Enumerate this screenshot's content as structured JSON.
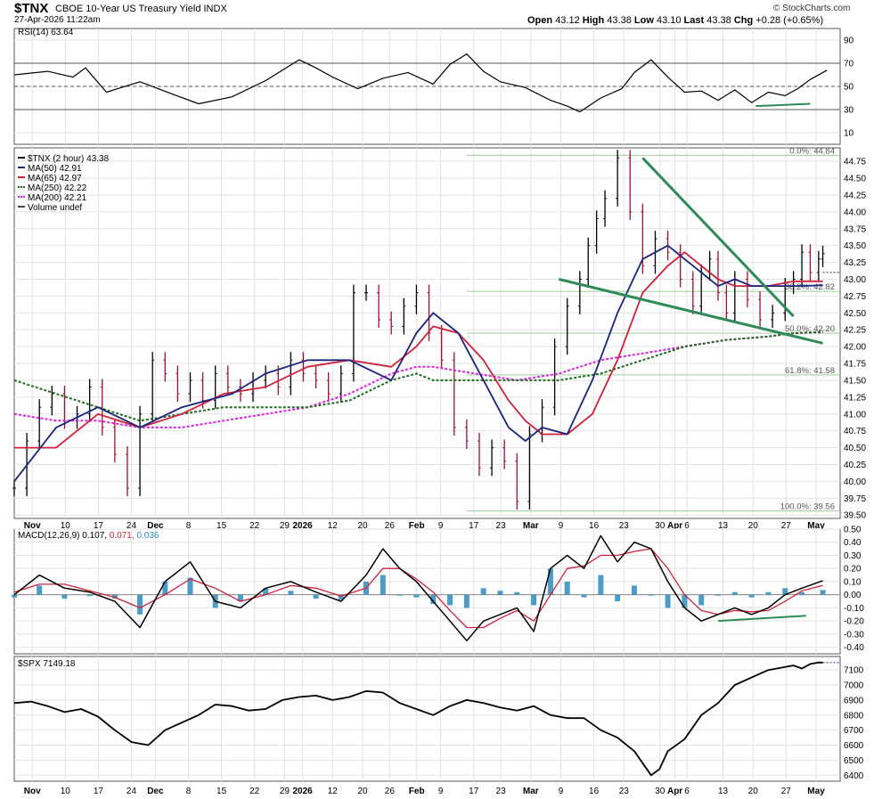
{
  "header": {
    "symbol": "$TNX",
    "name": "CBOE 10-Year US Treasury Yield INDX",
    "date": "27-Apr-2026 11:22am",
    "credit": "© StockCharts.com",
    "open_label": "Open",
    "open": "43.12",
    "high_label": "High",
    "high": "43.38",
    "low_label": "Low",
    "low": "43.10",
    "last_label": "Last",
    "last": "43.38",
    "chg_label": "Chg",
    "chg": "+0.28 (+0.65%)"
  },
  "colors": {
    "ma50": "#1a237e",
    "ma65": "#d0203a",
    "ma250": "#1e6b1e",
    "ma200": "#e020e0",
    "macd_hist": "#2b8cbe",
    "trend": "#2e8b57",
    "grid": "#e2e2e2",
    "fib": "#9ccc9c"
  },
  "chart_data": [
    {
      "type": "line",
      "panel": "rsi",
      "title": "RSI(14) 63.64",
      "ylim": [
        0,
        100
      ],
      "yticks": [
        "90",
        "70",
        "50",
        "30",
        "10"
      ],
      "reference_lines": [
        70,
        50,
        30
      ],
      "x": [
        0,
        8,
        14,
        17,
        22,
        30,
        38,
        44,
        52,
        60,
        68,
        72,
        76,
        82,
        88,
        94,
        100,
        104,
        108,
        112,
        116,
        122,
        128,
        132,
        135,
        140,
        145,
        148,
        152,
        156,
        160,
        164,
        168,
        172,
        176,
        180,
        184,
        187,
        190,
        194
      ],
      "values": [
        60,
        63,
        58,
        66,
        45,
        54,
        43,
        35,
        41,
        55,
        73,
        66,
        58,
        48,
        57,
        62,
        52,
        69,
        78,
        63,
        54,
        49,
        38,
        33,
        28,
        40,
        48,
        62,
        73,
        58,
        45,
        46,
        38,
        47,
        36,
        45,
        42,
        48,
        56,
        64
      ]
    },
    {
      "type": "line",
      "panel": "price",
      "series": [
        {
          "name": "$TNX (2 hour) 43.38",
          "kind": "ohlc",
          "x": [
            0,
            3,
            6,
            9,
            12,
            15,
            18,
            21,
            24,
            27,
            30,
            33,
            36,
            39,
            42,
            45,
            48,
            51,
            54,
            57,
            60,
            63,
            66,
            69,
            72,
            75,
            78,
            81,
            84,
            87,
            90,
            93,
            96,
            99,
            102,
            105,
            108,
            111,
            114,
            117,
            120,
            123,
            126,
            129,
            132,
            135,
            137,
            139,
            141,
            144,
            147,
            150,
            153,
            156,
            159,
            162,
            164,
            166,
            168,
            170,
            172,
            175,
            178,
            181,
            184,
            186,
            188,
            190,
            192,
            193
          ],
          "values": [
            39.9,
            40.6,
            41.1,
            41.3,
            40.9,
            41.0,
            41.4,
            40.8,
            40.4,
            39.9,
            41.0,
            41.8,
            41.6,
            41.3,
            41.5,
            41.2,
            41.6,
            41.4,
            41.3,
            41.5,
            41.6,
            41.4,
            41.8,
            41.6,
            41.5,
            41.3,
            41.6,
            42.8,
            42.8,
            42.4,
            42.3,
            42.6,
            42.8,
            42.2,
            41.8,
            40.8,
            40.6,
            40.2,
            40.5,
            40.3,
            39.7,
            40.7,
            41.1,
            42.0,
            42.6,
            43.0,
            43.5,
            43.9,
            44.2,
            44.8,
            44.0,
            43.2,
            43.6,
            43.4,
            43.0,
            42.6,
            43.1,
            43.3,
            42.8,
            42.5,
            43.0,
            42.7,
            42.4,
            42.5,
            42.9,
            43.0,
            43.4,
            43.1,
            43.3,
            43.38
          ]
        },
        {
          "name": "MA(50) 42.91",
          "x": [
            0,
            10,
            20,
            30,
            40,
            46,
            52,
            60,
            70,
            80,
            90,
            96,
            100,
            106,
            112,
            118,
            122,
            126,
            132,
            138,
            144,
            150,
            156,
            160,
            164,
            168,
            172,
            176,
            180,
            186,
            193
          ],
          "values": [
            40.0,
            40.8,
            41.1,
            40.8,
            41.1,
            41.2,
            41.3,
            41.6,
            41.8,
            41.8,
            41.5,
            42.2,
            42.5,
            42.2,
            41.5,
            40.8,
            40.6,
            40.8,
            40.7,
            41.5,
            42.5,
            43.3,
            43.5,
            43.3,
            43.1,
            42.9,
            43.0,
            42.9,
            42.9,
            42.9,
            42.91
          ]
        },
        {
          "name": "MA(65) 42.97",
          "x": [
            0,
            10,
            20,
            30,
            40,
            50,
            60,
            70,
            80,
            90,
            96,
            100,
            106,
            112,
            118,
            122,
            126,
            132,
            138,
            144,
            150,
            156,
            160,
            164,
            168,
            172,
            176,
            180,
            186,
            193
          ],
          "values": [
            40.5,
            40.5,
            41.0,
            40.8,
            41.0,
            41.3,
            41.4,
            41.7,
            41.8,
            41.7,
            42.0,
            42.3,
            42.2,
            41.8,
            41.2,
            40.9,
            40.7,
            40.7,
            41.0,
            41.8,
            42.8,
            43.2,
            43.4,
            43.2,
            43.0,
            42.9,
            42.9,
            42.9,
            42.97,
            42.97
          ]
        },
        {
          "name": "MA(250) 42.22",
          "x": [
            0,
            10,
            20,
            30,
            40,
            50,
            60,
            70,
            80,
            90,
            96,
            100,
            110,
            120,
            130,
            140,
            150,
            160,
            170,
            180,
            186,
            193
          ],
          "values": [
            41.5,
            41.3,
            41.1,
            40.9,
            41.0,
            41.1,
            41.1,
            41.1,
            41.2,
            41.5,
            41.6,
            41.5,
            41.5,
            41.5,
            41.5,
            41.6,
            41.8,
            42.0,
            42.1,
            42.15,
            42.2,
            42.22
          ]
        },
        {
          "name": "MA(200) 42.21",
          "x": [
            0,
            10,
            20,
            30,
            40,
            50,
            60,
            70,
            80,
            90,
            96,
            100,
            110,
            120,
            130,
            140,
            150,
            160,
            170,
            180,
            186,
            193
          ],
          "values": [
            41.0,
            40.9,
            40.9,
            40.8,
            40.8,
            40.9,
            41.0,
            41.1,
            41.3,
            41.6,
            41.7,
            41.7,
            41.6,
            41.5,
            41.6,
            41.8,
            41.9,
            42.0,
            42.1,
            42.15,
            42.2,
            42.21
          ]
        }
      ],
      "volume_label": "Volume undef",
      "ylim": [
        39.45,
        44.95
      ],
      "yticks": [
        "44.75",
        "44.50",
        "44.25",
        "44.00",
        "43.75",
        "43.50",
        "43.25",
        "43.00",
        "42.75",
        "42.50",
        "42.25",
        "42.00",
        "41.75",
        "41.50",
        "41.25",
        "41.00",
        "40.75",
        "40.50",
        "40.25",
        "40.00",
        "39.75",
        "39.50"
      ],
      "fib_levels": [
        {
          "label": "0.0%: 44.84",
          "value": 44.84
        },
        {
          "label": "38.2%: 42.82",
          "value": 42.82
        },
        {
          "label": "50.0%: 42.20",
          "value": 42.2
        },
        {
          "label": "61.8%: 41.58",
          "value": 41.58
        },
        {
          "label": "100.0%: 39.56",
          "value": 39.56
        }
      ],
      "trendlines": [
        {
          "x": [
            150,
            186
          ],
          "values": [
            44.8,
            42.45
          ]
        },
        {
          "x": [
            130,
            193
          ],
          "values": [
            43.0,
            42.05
          ]
        }
      ]
    },
    {
      "type": "line",
      "panel": "macd",
      "title": "MACD(12,26,9)",
      "macd": "0.107",
      "signal": "0.071",
      "histogram": "0.036",
      "ylim": [
        -0.45,
        0.5
      ],
      "yticks": [
        "0.50",
        "0.40",
        "0.30",
        "0.20",
        "0.10",
        "0.00",
        "-0.10",
        "-0.20",
        "-0.30",
        "-0.40"
      ],
      "x": [
        0,
        6,
        12,
        18,
        24,
        30,
        36,
        42,
        48,
        54,
        60,
        66,
        72,
        78,
        84,
        88,
        92,
        96,
        100,
        104,
        108,
        112,
        116,
        120,
        124,
        128,
        132,
        136,
        140,
        144,
        148,
        152,
        156,
        160,
        164,
        168,
        172,
        176,
        180,
        184,
        188,
        193
      ],
      "macd_values": [
        0.0,
        0.15,
        0.05,
        0.02,
        -0.05,
        -0.25,
        0.1,
        0.25,
        -0.05,
        -0.1,
        0.05,
        0.1,
        0.02,
        -0.05,
        0.15,
        0.35,
        0.2,
        0.1,
        -0.05,
        -0.2,
        -0.35,
        -0.2,
        -0.15,
        -0.1,
        -0.28,
        0.2,
        0.3,
        0.2,
        0.45,
        0.25,
        0.4,
        0.35,
        0.1,
        -0.1,
        -0.2,
        -0.15,
        -0.1,
        -0.15,
        -0.1,
        0.0,
        0.05,
        0.107
      ],
      "signal_values": [
        0.02,
        0.08,
        0.08,
        0.03,
        -0.02,
        -0.1,
        0.0,
        0.12,
        0.05,
        -0.05,
        0.0,
        0.07,
        0.05,
        -0.01,
        0.05,
        0.2,
        0.2,
        0.12,
        0.02,
        -0.12,
        -0.25,
        -0.25,
        -0.18,
        -0.12,
        -0.2,
        0.0,
        0.2,
        0.22,
        0.3,
        0.3,
        0.33,
        0.35,
        0.2,
        0.0,
        -0.12,
        -0.15,
        -0.12,
        -0.13,
        -0.12,
        -0.05,
        0.03,
        0.071
      ],
      "trendline": {
        "x": [
          168,
          189
        ],
        "values": [
          -0.2,
          -0.16
        ]
      }
    },
    {
      "type": "line",
      "panel": "spx",
      "title": "$SPX 7149.18",
      "ylim": [
        6360,
        7190
      ],
      "yticks": [
        "7100",
        "7000",
        "6900",
        "6800",
        "6700",
        "6600",
        "6500",
        "6400"
      ],
      "x": [
        0,
        4,
        8,
        12,
        16,
        20,
        24,
        28,
        32,
        36,
        40,
        44,
        48,
        52,
        56,
        60,
        64,
        68,
        72,
        76,
        80,
        84,
        88,
        92,
        96,
        100,
        104,
        108,
        112,
        116,
        120,
        124,
        128,
        132,
        136,
        140,
        144,
        148,
        150,
        152,
        154,
        156,
        160,
        164,
        168,
        172,
        176,
        180,
        184,
        186,
        188,
        190,
        192,
        193
      ],
      "values": [
        6880,
        6890,
        6860,
        6820,
        6840,
        6790,
        6700,
        6620,
        6600,
        6700,
        6750,
        6800,
        6870,
        6860,
        6830,
        6840,
        6900,
        6920,
        6930,
        6900,
        6920,
        6960,
        6950,
        6880,
        6840,
        6800,
        6860,
        6900,
        6880,
        6850,
        6830,
        6860,
        6800,
        6780,
        6780,
        6700,
        6650,
        6560,
        6480,
        6400,
        6440,
        6560,
        6640,
        6800,
        6880,
        7000,
        7050,
        7100,
        7120,
        7130,
        7110,
        7140,
        7150,
        7149.18
      ]
    }
  ],
  "x_axis": {
    "labels": [
      "Nov",
      "10",
      "17",
      "24",
      "Dec",
      "8",
      "15",
      "22",
      "29",
      "2026",
      "12",
      "20",
      "26",
      "Feb",
      "9",
      "17",
      "23",
      "Mar",
      "9",
      "16",
      "23",
      "30",
      "Apr",
      "6",
      "13",
      "20",
      "27",
      "May"
    ],
    "positions": [
      6,
      17,
      28,
      39,
      47,
      58,
      69,
      80,
      90,
      96,
      106,
      116,
      125,
      134,
      142,
      153,
      162,
      172,
      182,
      193,
      203,
      215,
      220,
      224,
      236,
      246,
      257,
      267
    ]
  },
  "legend": {
    "price": "$TNX (2 hour) 43.38",
    "ma50": "MA(50) 42.91",
    "ma65": "MA(65) 42.97",
    "ma250": "MA(250) 42.22",
    "ma200": "MA(200) 42.21",
    "volume": "Volume undef"
  }
}
